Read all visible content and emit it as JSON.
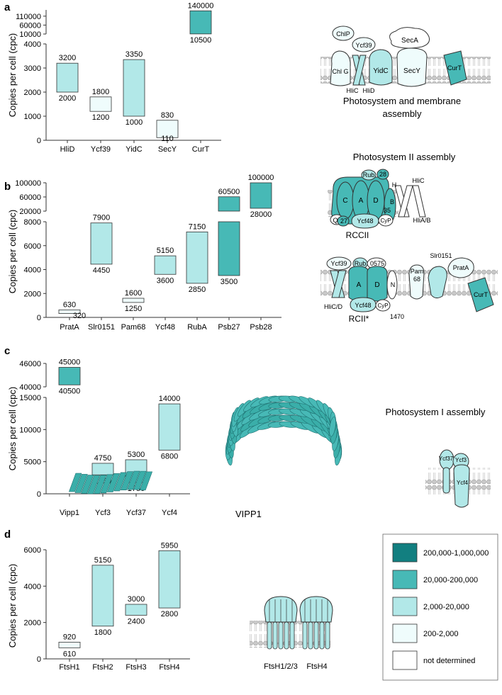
{
  "figure": {
    "panel_letters": [
      "a",
      "b",
      "c",
      "d"
    ],
    "ylabel": "Copies per cell (cpc)"
  },
  "colors": {
    "c1": "#127f80",
    "c2": "#47b9b6",
    "c3": "#b2e8e8",
    "c4": "#effcfc",
    "c5": "#ffffff",
    "edge": "#333333",
    "membrane": "#bdbdbd"
  },
  "legend": {
    "items": [
      {
        "label": "200,000-1,000,000",
        "color": "#127f80"
      },
      {
        "label": "20,000-200,000",
        "color": "#47b9b6"
      },
      {
        "label": "2,000-20,000",
        "color": "#b2e8e8"
      },
      {
        "label": "200-2,000",
        "color": "#effcfc"
      },
      {
        "label": "not determined",
        "color": "#ffffff"
      }
    ]
  },
  "chart_data": [
    {
      "panel": "a",
      "type": "bar",
      "ylabel": "Copies per cell (cpc)",
      "categories": [
        "HliD",
        "Ycf39",
        "YidC",
        "SecY",
        "CurT"
      ],
      "ranges": [
        [
          2000,
          3200
        ],
        [
          1200,
          1800
        ],
        [
          1000,
          3350
        ],
        [
          110,
          830
        ],
        [
          10500,
          140000
        ]
      ],
      "colors": [
        "#b2e8e8",
        "#effcfc",
        "#b2e8e8",
        "#effcfc",
        "#47b9b6"
      ],
      "lower_axis": {
        "ylim": [
          0,
          4000
        ],
        "ticks": [
          "0",
          "1000",
          "2000",
          "3000",
          "4000"
        ]
      },
      "upper_axis": {
        "ticks": [
          "10000",
          "60000",
          "110000"
        ]
      },
      "schematic": {
        "caption": "Photosystem and membrane assembly",
        "labels": [
          "ChlP",
          "Ycf39",
          "SecA",
          "Chl G",
          "YidC",
          "SecY",
          "CurT",
          "HliC",
          "HliD"
        ]
      }
    },
    {
      "panel": "b",
      "type": "bar",
      "ylabel": "Copies per cell (cpc)",
      "categories": [
        "PratA",
        "Slr0151",
        "Pam68",
        "Ycf48",
        "RubA",
        "Psb27",
        "Psb28"
      ],
      "ranges": [
        [
          320,
          630
        ],
        [
          4450,
          7900
        ],
        [
          1250,
          1600
        ],
        [
          3600,
          5150
        ],
        [
          2850,
          7150
        ],
        [
          3500,
          60500
        ],
        [
          28000,
          100000
        ]
      ],
      "colors": [
        "#effcfc",
        "#b2e8e8",
        "#effcfc",
        "#b2e8e8",
        "#b2e8e8",
        "#47b9b6",
        "#47b9b6"
      ],
      "lower_axis": {
        "ylim": [
          0,
          8000
        ],
        "ticks": [
          "0",
          "2000",
          "4000",
          "6000",
          "8000"
        ]
      },
      "upper_axis": {
        "ticks": [
          "20000",
          "60000",
          "100000"
        ]
      },
      "schematic": {
        "title": "Photosystem II assembly",
        "top_caption": "RCCII",
        "bottom_caption": "RCII*",
        "top_labels": [
          "Rub",
          "28",
          "HliC",
          "H",
          "C",
          "A",
          "D",
          "B",
          "35",
          "Q",
          "27",
          "Ycf48",
          "CyP",
          "HliA/B"
        ],
        "bottom_labels": [
          "Ycf39",
          "Rub",
          "0575",
          "Slr0151",
          "Pam",
          "68",
          "PratA",
          "A",
          "D",
          "N",
          "HliC/D",
          "Ycf48",
          "CyP",
          "1470",
          "CurT"
        ]
      }
    },
    {
      "panel": "c",
      "type": "bar",
      "ylabel": "Copies per cell (cpc)",
      "categories": [
        "Vipp1",
        "Ycf3",
        "Ycf37",
        "Ycf4"
      ],
      "ranges": [
        [
          40500,
          45000
        ],
        [
          2950,
          4750
        ],
        [
          1750,
          5300
        ],
        [
          6800,
          14000
        ]
      ],
      "colors": [
        "#47b9b6",
        "#b2e8e8",
        "#b2e8e8",
        "#b2e8e8"
      ],
      "lower_axis": {
        "ylim": [
          0,
          15000
        ],
        "ticks": [
          "0",
          "5000",
          "10000",
          "15000"
        ]
      },
      "upper_axis": {
        "ticks": [
          "40000",
          "46000"
        ]
      },
      "schematic": {
        "vipp_caption": "VIPP1",
        "title": "Photosystem I assembly",
        "labels": [
          "Ycf37",
          "Ycf3",
          "Ycf4"
        ]
      }
    },
    {
      "panel": "d",
      "type": "bar",
      "ylabel": "Copies per cell (cpc)",
      "categories": [
        "FtsH1",
        "FtsH2",
        "FtsH3",
        "FtsH4"
      ],
      "ranges": [
        [
          610,
          920
        ],
        [
          1800,
          5150
        ],
        [
          2400,
          3000
        ],
        [
          2800,
          5950
        ]
      ],
      "colors": [
        "#effcfc",
        "#b2e8e8",
        "#b2e8e8",
        "#b2e8e8"
      ],
      "lower_axis": {
        "ylim": [
          0,
          6000
        ],
        "ticks": [
          "0",
          "2000",
          "4000",
          "6000"
        ]
      },
      "schematic": {
        "labels": [
          "FtsH1/2/3",
          "FtsH4"
        ]
      }
    }
  ]
}
